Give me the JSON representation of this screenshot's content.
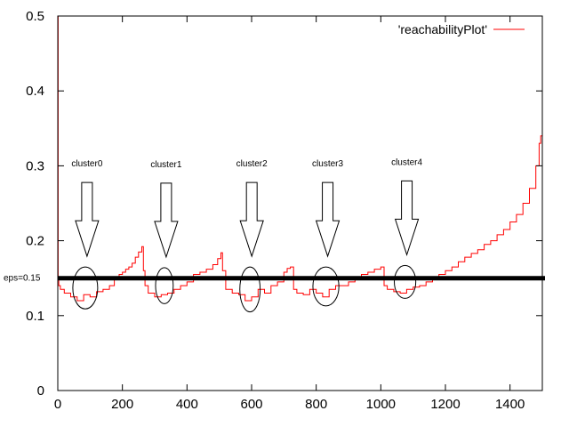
{
  "chart_data": {
    "type": "line",
    "title": "",
    "xlabel": "",
    "ylabel": "",
    "xlim": [
      0,
      1500
    ],
    "ylim": [
      0,
      0.5
    ],
    "x_ticks": [
      0,
      200,
      400,
      600,
      800,
      1000,
      1200,
      1400
    ],
    "y_ticks": [
      0,
      0.1,
      0.2,
      0.3,
      0.4,
      0.5
    ],
    "x_tick_labels": [
      "0",
      "200",
      "400",
      "600",
      "800",
      "1000",
      "1200",
      "1400"
    ],
    "y_tick_labels": [
      "0",
      "0.1",
      "0.2",
      "0.3",
      "0.4",
      "0.5"
    ],
    "grid": false,
    "legend": {
      "position": "top-right",
      "entries": [
        "'reachabilityPlot'"
      ]
    },
    "series": [
      {
        "name": "'reachabilityPlot'",
        "color": "#ff0000",
        "x": [
          0,
          1,
          3,
          8,
          20,
          40,
          60,
          80,
          100,
          120,
          140,
          160,
          175,
          190,
          200,
          210,
          220,
          230,
          240,
          250,
          260,
          265,
          270,
          280,
          300,
          320,
          340,
          360,
          380,
          400,
          420,
          440,
          460,
          480,
          495,
          505,
          510,
          520,
          540,
          560,
          580,
          600,
          620,
          640,
          660,
          680,
          700,
          710,
          720,
          730,
          740,
          760,
          780,
          800,
          820,
          840,
          860,
          880,
          900,
          920,
          940,
          960,
          980,
          1000,
          1010,
          1020,
          1040,
          1060,
          1080,
          1100,
          1120,
          1140,
          1160,
          1180,
          1200,
          1220,
          1240,
          1260,
          1280,
          1300,
          1320,
          1340,
          1360,
          1380,
          1400,
          1420,
          1440,
          1460,
          1480,
          1490,
          1495,
          1500
        ],
        "y": [
          0.5,
          0.15,
          0.14,
          0.135,
          0.13,
          0.125,
          0.12,
          0.128,
          0.125,
          0.132,
          0.135,
          0.14,
          0.15,
          0.155,
          0.158,
          0.162,
          0.165,
          0.17,
          0.178,
          0.185,
          0.192,
          0.16,
          0.14,
          0.13,
          0.125,
          0.128,
          0.13,
          0.135,
          0.14,
          0.145,
          0.155,
          0.158,
          0.162,
          0.168,
          0.176,
          0.184,
          0.16,
          0.135,
          0.13,
          0.128,
          0.12,
          0.125,
          0.135,
          0.13,
          0.14,
          0.145,
          0.158,
          0.163,
          0.165,
          0.135,
          0.13,
          0.128,
          0.135,
          0.13,
          0.125,
          0.135,
          0.14,
          0.14,
          0.145,
          0.148,
          0.155,
          0.158,
          0.162,
          0.165,
          0.14,
          0.135,
          0.132,
          0.13,
          0.135,
          0.138,
          0.14,
          0.145,
          0.15,
          0.155,
          0.16,
          0.165,
          0.172,
          0.178,
          0.183,
          0.188,
          0.195,
          0.2,
          0.208,
          0.215,
          0.225,
          0.235,
          0.25,
          0.27,
          0.3,
          0.33,
          0.34,
          0.38
        ]
      }
    ],
    "eps": {
      "value": 0.15,
      "label": "eps=0.15"
    },
    "clusters": [
      {
        "label": "cluster0",
        "center_x": 85,
        "center_y": 0.137,
        "rx": 110,
        "ry": 0.028
      },
      {
        "label": "cluster1",
        "center_x": 330,
        "center_y": 0.14,
        "rx": 78,
        "ry": 0.024
      },
      {
        "label": "cluster2",
        "center_x": 595,
        "center_y": 0.135,
        "rx": 90,
        "ry": 0.03
      },
      {
        "label": "cluster3",
        "center_x": 830,
        "center_y": 0.139,
        "rx": 115,
        "ry": 0.026
      },
      {
        "label": "cluster4",
        "center_x": 1075,
        "center_y": 0.145,
        "rx": 95,
        "ry": 0.022
      }
    ]
  }
}
